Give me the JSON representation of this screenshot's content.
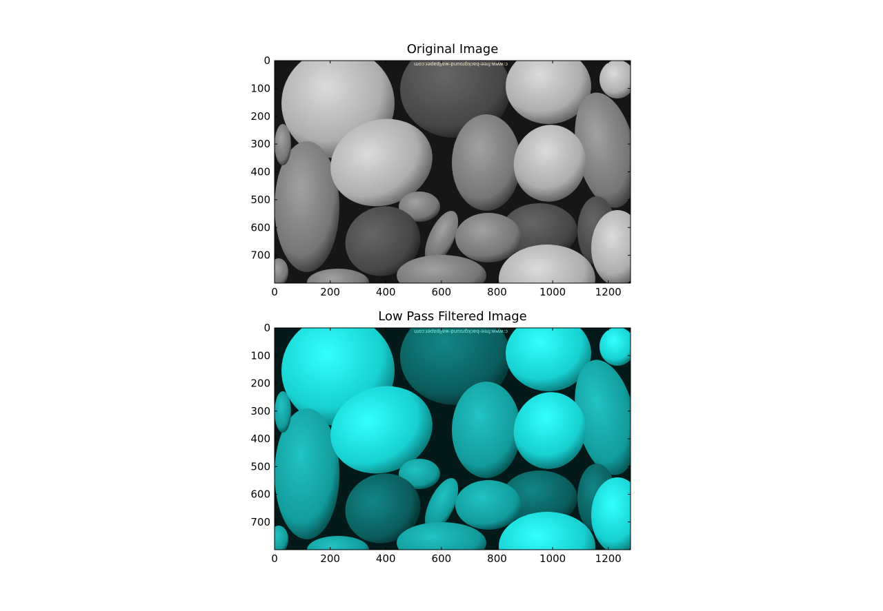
{
  "figure": {
    "panels": [
      {
        "title": "Original Image",
        "tint": "grayscale",
        "stone_palette": {
          "dark": "#1c1c1c",
          "mid": "#8a8a8a",
          "light": "#d8d8d8",
          "edge": "#0a0a0a"
        },
        "watermark": "c:www.free-background-wallpaper.com",
        "watermark_color": "#f2e6c8",
        "x_ticks": [
          "0",
          "200",
          "400",
          "600",
          "800",
          "1000",
          "1200"
        ],
        "y_ticks": [
          "0",
          "100",
          "200",
          "300",
          "400",
          "500",
          "600",
          "700"
        ]
      },
      {
        "title": "Low Pass Filtered Image",
        "tint": "cyan",
        "stone_palette": {
          "dark": "#062626",
          "mid": "#1fb3b3",
          "light": "#27f5f5",
          "edge": "#021313"
        },
        "watermark": "c:www.free-background-wallpaper.com",
        "watermark_color": "#7ff0e6",
        "x_ticks": [
          "0",
          "200",
          "400",
          "600",
          "800",
          "1000",
          "1200"
        ],
        "y_ticks": [
          "0",
          "100",
          "200",
          "300",
          "400",
          "500",
          "600",
          "700"
        ]
      }
    ],
    "image_extent": {
      "x_max": 1280,
      "y_max": 800
    }
  }
}
